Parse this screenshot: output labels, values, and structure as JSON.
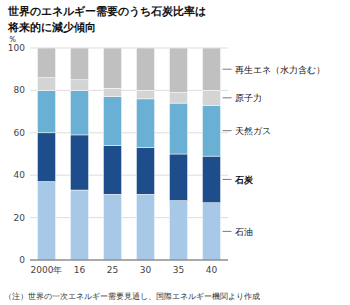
{
  "chart_data": {
    "type": "bar",
    "stacked": true,
    "grid": true,
    "title": "世界のエネルギー需要のうち石炭比率は",
    "subtitle": "将来的に減少傾向",
    "y_label": "％",
    "annotations": [
      "（注）世界の一次エネルギー需要見通し、国際エネルギー機関より作成"
    ],
    "categories": [
      "2000年",
      "16",
      "25",
      "30",
      "35",
      "40"
    ],
    "series": [
      {
        "name": "石油",
        "color": "#a8c8e8",
        "values": [
          37,
          33,
          31,
          31,
          28,
          27
        ]
      },
      {
        "name": "石炭",
        "color": "#1e4d8c",
        "values": [
          23,
          26,
          23,
          22,
          22,
          22
        ]
      },
      {
        "name": "天然ガス",
        "color": "#6aafd4",
        "values": [
          20,
          21,
          23,
          23,
          24,
          24
        ]
      },
      {
        "name": "原子力",
        "color": "#d4d4d4",
        "values": [
          6,
          5,
          4,
          4,
          5,
          7
        ]
      },
      {
        "name": "再生エネ（水力含む）",
        "color": "#c0c0c0",
        "values": [
          14,
          15,
          19,
          20,
          21,
          20
        ]
      }
    ],
    "ylim": [
      0,
      100
    ],
    "yticks": [
      0,
      20,
      40,
      60,
      80,
      100
    ]
  }
}
